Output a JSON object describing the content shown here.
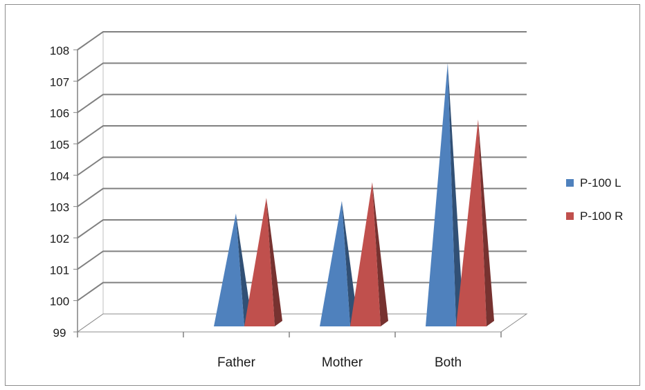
{
  "chart_data": {
    "type": "bar",
    "style": "3d-pyramid",
    "categories": [
      "",
      "Father",
      "Mother",
      "Both"
    ],
    "series": [
      {
        "name": "P-100 L",
        "color": "#4F81BD",
        "values": [
          null,
          102.6,
          103.0,
          107.4
        ]
      },
      {
        "name": "P-100 R",
        "color": "#C0504D",
        "values": [
          null,
          103.1,
          103.6,
          105.6
        ]
      }
    ],
    "ylim": [
      99,
      108
    ],
    "yticks": [
      "99",
      "100",
      "101",
      "102",
      "103",
      "104",
      "105",
      "106",
      "107",
      "108"
    ],
    "grid": true,
    "legend": "right",
    "title": "",
    "xlabel": "",
    "ylabel": ""
  }
}
